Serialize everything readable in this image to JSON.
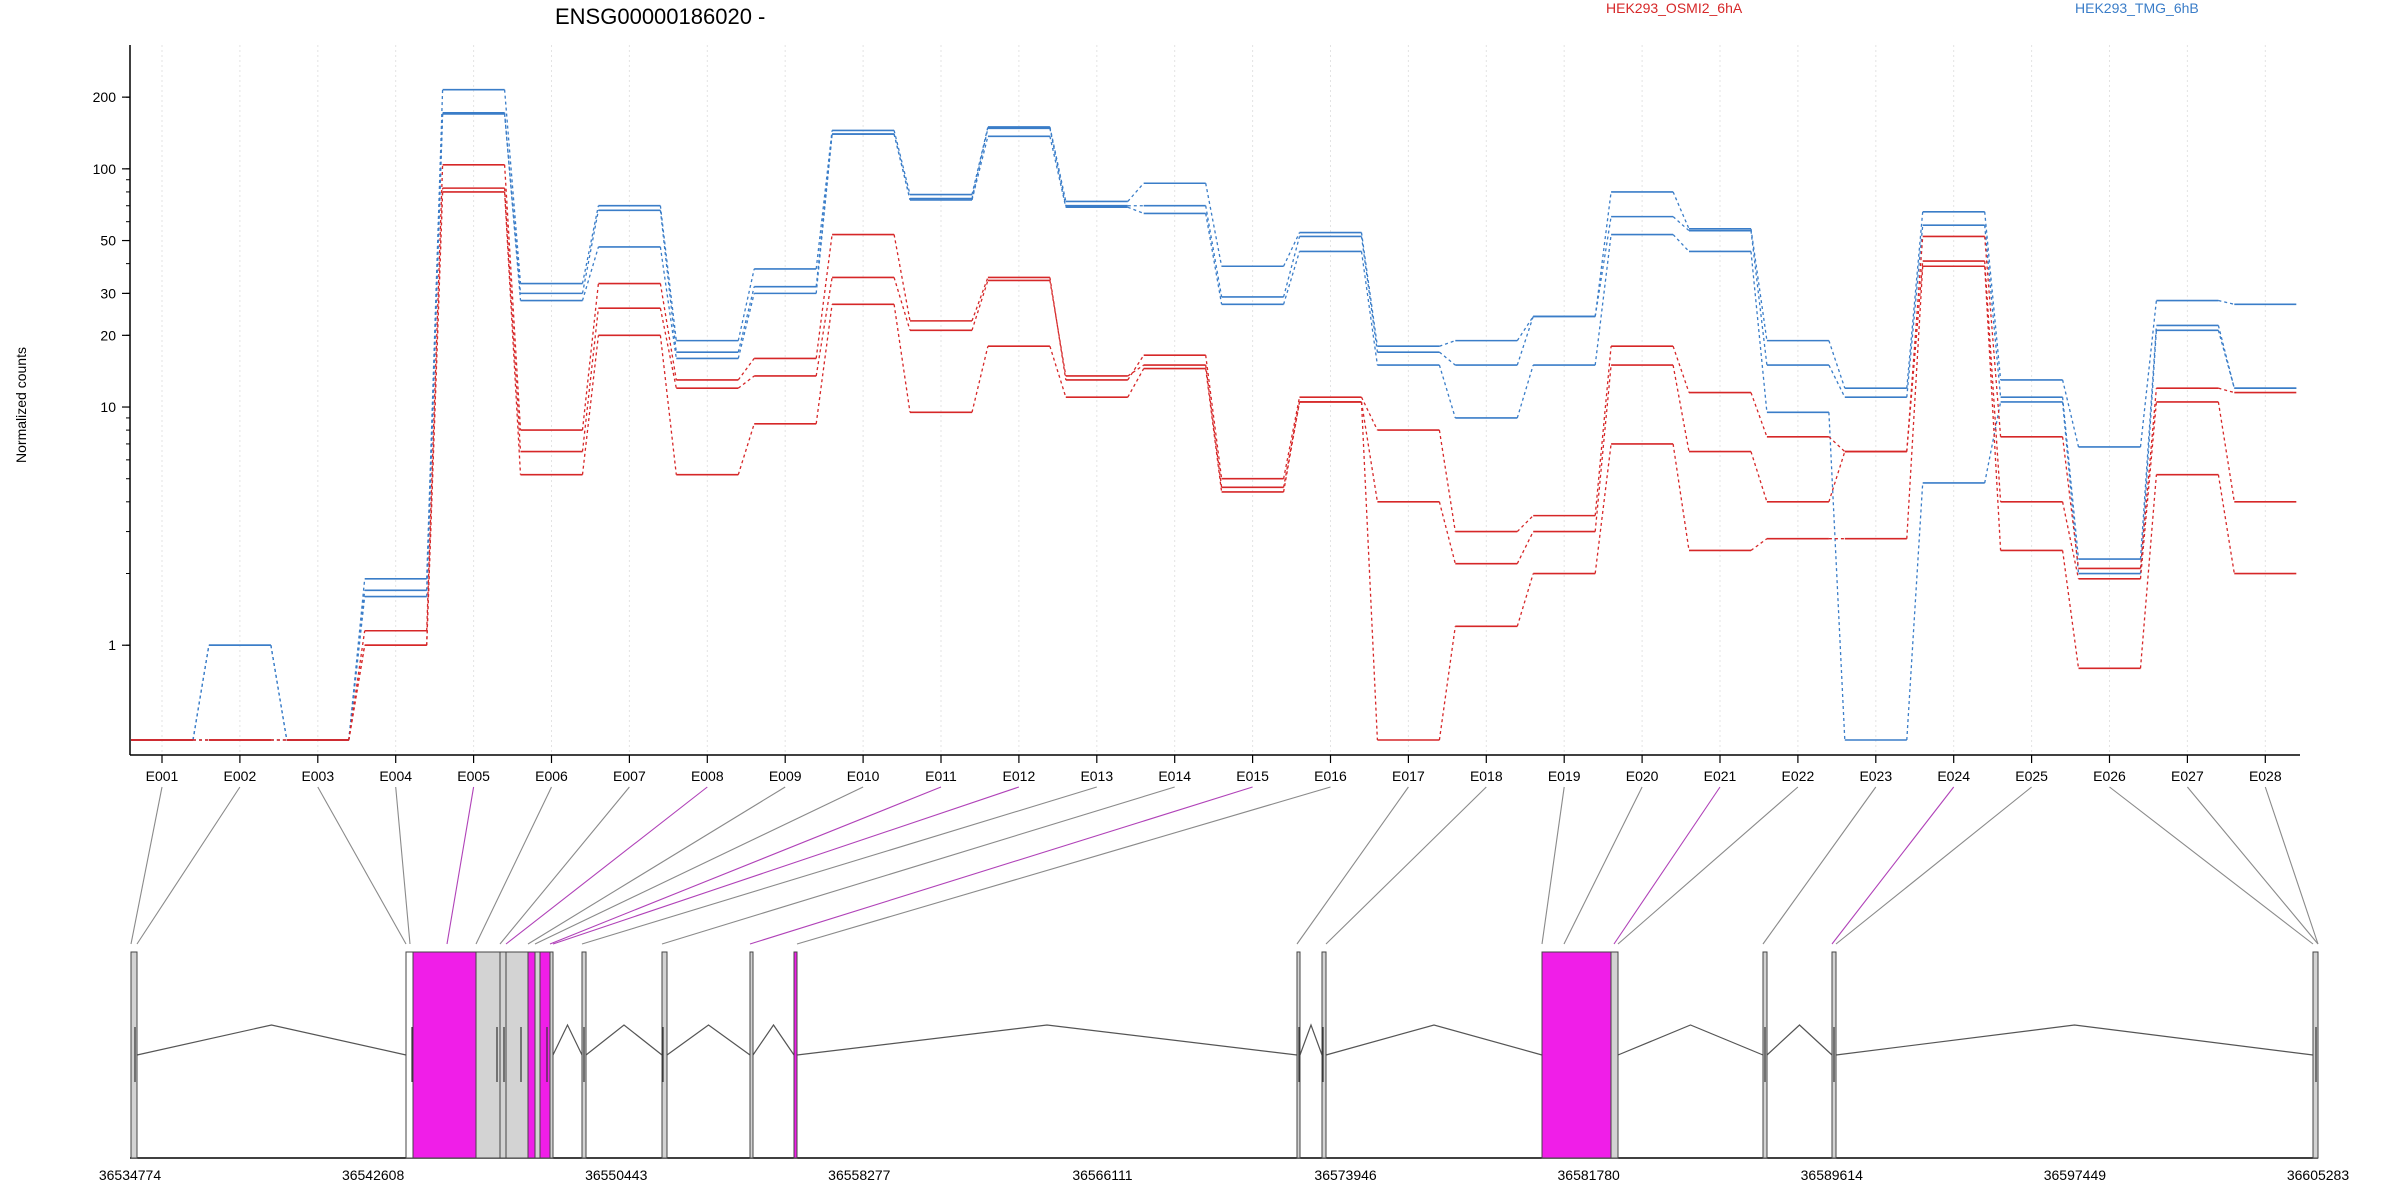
{
  "title": "ENSG00000186020 -",
  "ylabel": "Normalized counts",
  "legend": [
    {
      "name": "HEK293_OSMI2_6hA",
      "color": "#d62728"
    },
    {
      "name": "HEK293_TMG_6hB",
      "color": "#3a7dc8"
    }
  ],
  "chart_data": {
    "type": "line",
    "title": "ENSG00000186020 -",
    "ylabel": "Normalized counts",
    "yscale": "log",
    "ylim": [
      0.4,
      260
    ],
    "yticks": [
      "1",
      "10",
      "20",
      "30",
      "50",
      "100",
      "200"
    ],
    "grid": true,
    "legend_position": "top",
    "categories": [
      "E001",
      "E002",
      "E003",
      "E004",
      "E005",
      "E006",
      "E007",
      "E008",
      "E009",
      "E010",
      "E011",
      "E012",
      "E013",
      "E014",
      "E015",
      "E016",
      "E017",
      "E018",
      "E019",
      "E020",
      "E021",
      "E022",
      "E023",
      "E024",
      "E025",
      "E026",
      "E027",
      "E028"
    ],
    "series": [
      {
        "group": "HEK293_TMG_6hB",
        "color": "#3a7dc8",
        "values": [
          0.4,
          1.0,
          0.4,
          1.9,
          215,
          33,
          70,
          19,
          38,
          145,
          78,
          150,
          73,
          87,
          39,
          54,
          18,
          19,
          24,
          80,
          56,
          19,
          12,
          66,
          13,
          6.8,
          28,
          27
        ]
      },
      {
        "group": "HEK293_TMG_6hB",
        "color": "#3a7dc8",
        "values": [
          0.4,
          1.0,
          0.4,
          1.6,
          170,
          30,
          67,
          17,
          32,
          140,
          75,
          148,
          70,
          70,
          29,
          52,
          17,
          15,
          24,
          63,
          55,
          15,
          11,
          58,
          11,
          2.3,
          22,
          12
        ]
      },
      {
        "group": "HEK293_TMG_6hB",
        "color": "#3a7dc8",
        "values": [
          0.4,
          0.4,
          0.4,
          1.7,
          172,
          28,
          47,
          16,
          30,
          140,
          74,
          137,
          69,
          65,
          27,
          45,
          15,
          9,
          15,
          53,
          45,
          9.5,
          0.4,
          4.8,
          10.5,
          2.0,
          21,
          12
        ]
      },
      {
        "group": "HEK293_OSMI2_6hA",
        "color": "#d62728",
        "values": [
          0.4,
          0.4,
          0.4,
          1.15,
          104,
          8,
          33,
          13,
          16,
          53,
          23,
          35,
          13,
          16.5,
          5,
          11,
          8,
          3,
          3.5,
          18,
          11.5,
          7.5,
          6.5,
          52,
          7.5,
          2.1,
          12,
          11.5
        ]
      },
      {
        "group": "HEK293_OSMI2_6hA",
        "color": "#d62728",
        "values": [
          0.4,
          0.4,
          0.4,
          1.0,
          83,
          6.5,
          26,
          12,
          13.5,
          35,
          21,
          34,
          13.5,
          15,
          4.6,
          10.5,
          4,
          2.2,
          3,
          15,
          6.5,
          4,
          6.5,
          41,
          4,
          1.9,
          10.5,
          4
        ]
      },
      {
        "group": "HEK293_OSMI2_6hA",
        "color": "#d62728",
        "values": [
          0.4,
          0.4,
          0.4,
          1.0,
          80,
          5.2,
          20,
          5.2,
          8.5,
          27,
          9.5,
          18,
          11,
          14.5,
          4.4,
          10.5,
          0.4,
          1.2,
          2,
          7,
          2.5,
          2.8,
          2.8,
          39,
          2.5,
          0.8,
          5.2,
          2
        ]
      }
    ]
  },
  "gene_model": {
    "genomic_ticks": [
      "36534774",
      "36542608",
      "36550443",
      "36558277",
      "36566111",
      "36573946",
      "36581780",
      "36589614",
      "36597449",
      "36605283"
    ],
    "highlight_color": "#f01ee8",
    "exon_fill": "#d3d3d3",
    "highlighted_exons": [
      "E005",
      "E008",
      "E011",
      "E012",
      "E015",
      "E021",
      "E024"
    ]
  }
}
